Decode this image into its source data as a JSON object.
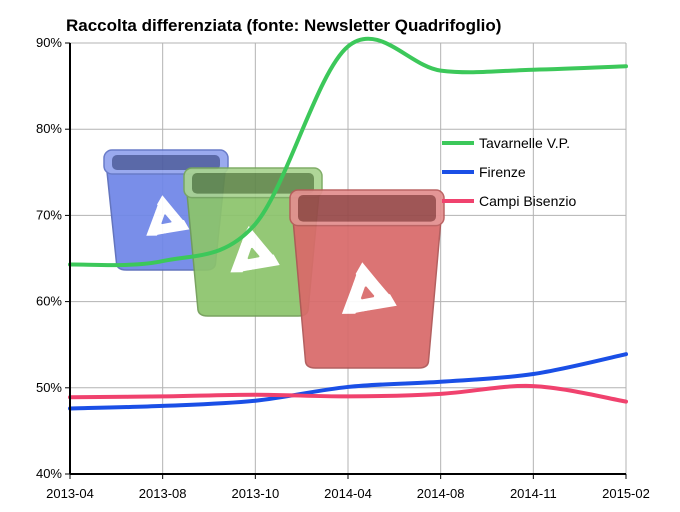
{
  "chart_data": {
    "type": "line",
    "title": "Raccolta differenziata (fonte: Newsletter Quadrifoglio)",
    "xlabel": "",
    "ylabel": "",
    "x": [
      "2013-04",
      "2013-08",
      "2013-10",
      "2014-04",
      "2014-08",
      "2014-11",
      "2015-02"
    ],
    "ylim": [
      40,
      90
    ],
    "y_ticks": [
      40,
      50,
      60,
      70,
      80,
      90
    ],
    "y_tick_labels": [
      "40%",
      "50%",
      "60%",
      "70%",
      "80%",
      "90%"
    ],
    "grid": true,
    "legend_position": "right",
    "series": [
      {
        "name": "Tavarnelle V.P.",
        "color": "#3cc85a",
        "values": [
          64.3,
          64.7,
          69.0,
          89.6,
          86.8,
          86.9,
          87.3
        ]
      },
      {
        "name": "Firenze",
        "color": "#1a4fe6",
        "values": [
          47.6,
          47.9,
          48.5,
          50.1,
          50.7,
          51.6,
          53.9
        ]
      },
      {
        "name": "Campi Bisenzio",
        "color": "#f0426e",
        "values": [
          48.9,
          49.0,
          49.2,
          49.0,
          49.3,
          50.2,
          48.4
        ]
      }
    ],
    "decoration": {
      "bins": [
        {
          "name": "blue-recycling-bin",
          "color": "#6f86e8"
        },
        {
          "name": "green-recycling-bin",
          "color": "#8cc46c"
        },
        {
          "name": "red-recycling-bin",
          "color": "#d96a6a"
        }
      ],
      "icon": "recycling-icon"
    }
  }
}
